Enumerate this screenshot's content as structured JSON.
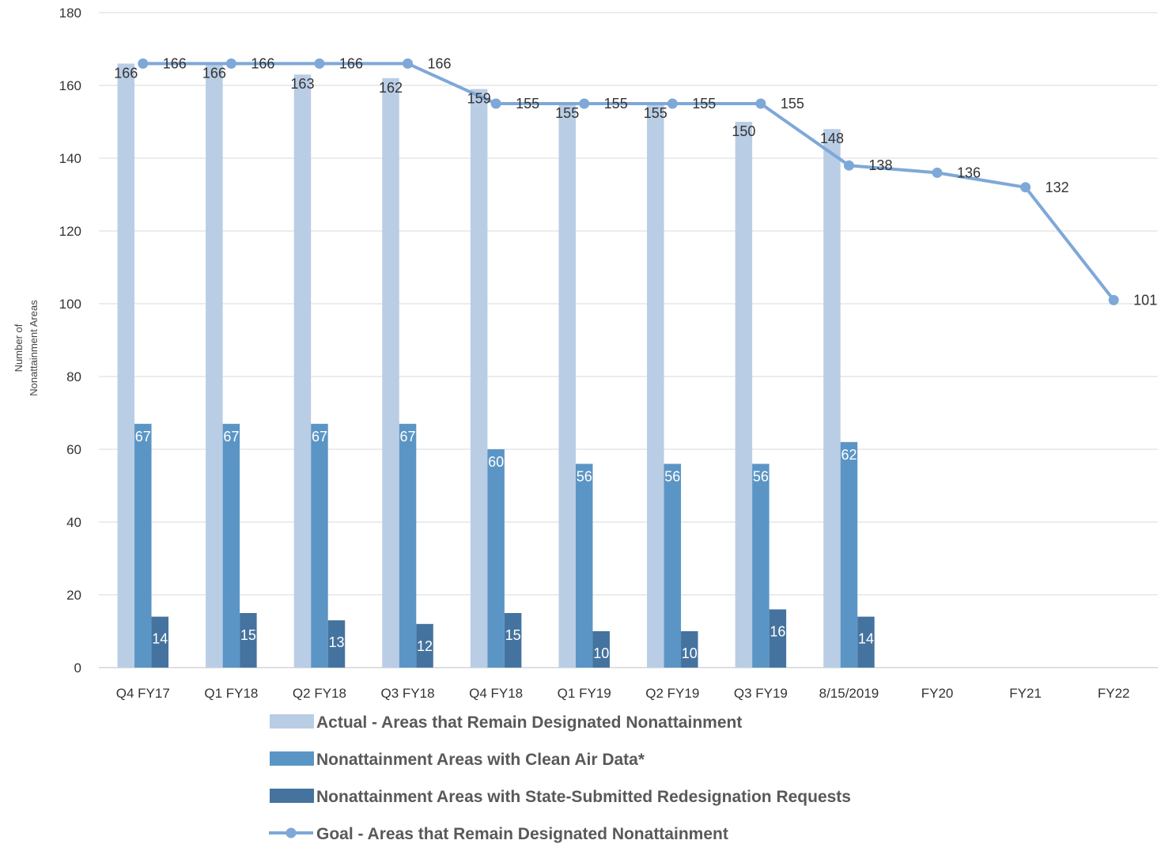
{
  "chart_data": {
    "type": "bar",
    "title": "",
    "xlabel": "",
    "ylabel_lines": [
      "Number of",
      "Nonattainment Areas"
    ],
    "ylim": [
      0,
      180
    ],
    "yticks": [
      0,
      20,
      40,
      60,
      80,
      100,
      120,
      140,
      160,
      180
    ],
    "grid": true,
    "legend_position": "bottom",
    "categories": [
      "Q4 FY17",
      "Q1 FY18",
      "Q2 FY18",
      "Q3 FY18",
      "Q4 FY18",
      "Q1 FY19",
      "Q2 FY19",
      "Q3 FY19",
      "8/15/2019",
      "FY20",
      "FY21",
      "FY22"
    ],
    "series": [
      {
        "name": "Actual - Areas that Remain Designated Nonattainment",
        "kind": "bar",
        "color": "#b9cde5",
        "label_color": "#333333",
        "values": [
          166,
          166,
          163,
          162,
          159,
          155,
          155,
          150,
          148,
          null,
          null,
          null
        ]
      },
      {
        "name": "Nonattainment Areas with Clean Air Data*",
        "kind": "bar",
        "color": "#5b95c5",
        "label_color": "#ffffff",
        "values": [
          67,
          67,
          67,
          67,
          60,
          56,
          56,
          56,
          62,
          null,
          null,
          null
        ]
      },
      {
        "name": "Nonattainment Areas with State-Submitted Redesignation Requests",
        "kind": "bar",
        "color": "#45739f",
        "label_color": "#ffffff",
        "values": [
          14,
          15,
          13,
          12,
          15,
          10,
          10,
          16,
          14,
          null,
          null,
          null
        ]
      },
      {
        "name": "Goal - Areas that Remain Designated Nonattainment",
        "kind": "line",
        "color": "#7ea8d8",
        "label_color": "#333333",
        "values": [
          166,
          166,
          166,
          166,
          155,
          155,
          155,
          155,
          138,
          136,
          132,
          101
        ]
      }
    ]
  }
}
